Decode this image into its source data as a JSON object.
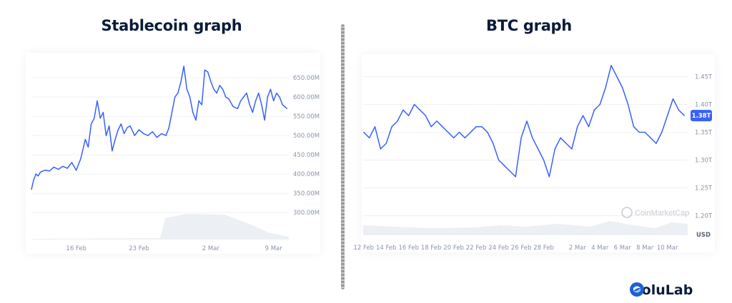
{
  "left": {
    "title": "Stablecoin graph"
  },
  "right": {
    "title": "BTC graph",
    "watermark": "CoinMarketCap",
    "currency_label": "USD"
  },
  "brand": {
    "name": "SoluLab"
  },
  "colors": {
    "line": "#3861fb",
    "title": "#0b1b3a",
    "volume": "#eceff3",
    "grid": "#eef0f3",
    "tick": "#8a94a6"
  },
  "chart_data": [
    {
      "type": "line",
      "title": "Stablecoin graph",
      "x_unit": "day (2024, approx.)",
      "xlabel": "",
      "ylabel": "",
      "x_ticks": [
        "16 Feb",
        "23 Feb",
        "2 Mar",
        "9 Mar"
      ],
      "y_ticks": [
        "300.00M",
        "350.00M",
        "400.00M",
        "450.00M",
        "500.00M",
        "550.00M",
        "600.00M",
        "650.00M"
      ],
      "ylim": [
        230,
        700
      ],
      "grid": true,
      "series": [
        {
          "values_unit": "millions",
          "points": [
            [
              "2024-02-11",
              360
            ],
            [
              "2024-02-11T06",
              385
            ],
            [
              "2024-02-11T12",
              400
            ],
            [
              "2024-02-11T18",
              395
            ],
            [
              "2024-02-12",
              405
            ],
            [
              "2024-02-12T12",
              410
            ],
            [
              "2024-02-13",
              408
            ],
            [
              "2024-02-13T12",
              418
            ],
            [
              "2024-02-14",
              412
            ],
            [
              "2024-02-14T12",
              420
            ],
            [
              "2024-02-15",
              415
            ],
            [
              "2024-02-15T12",
              430
            ],
            [
              "2024-02-16",
              410
            ],
            [
              "2024-02-16T12",
              440
            ],
            [
              "2024-02-17",
              490
            ],
            [
              "2024-02-17T08",
              470
            ],
            [
              "2024-02-17T16",
              530
            ],
            [
              "2024-02-18",
              545
            ],
            [
              "2024-02-18T08",
              590
            ],
            [
              "2024-02-18T16",
              545
            ],
            [
              "2024-02-19",
              560
            ],
            [
              "2024-02-19T08",
              500
            ],
            [
              "2024-02-19T16",
              525
            ],
            [
              "2024-02-20",
              460
            ],
            [
              "2024-02-20T08",
              490
            ],
            [
              "2024-02-20T16",
              515
            ],
            [
              "2024-02-21",
              530
            ],
            [
              "2024-02-21T08",
              505
            ],
            [
              "2024-02-21T16",
              520
            ],
            [
              "2024-02-22",
              525
            ],
            [
              "2024-02-22T12",
              500
            ],
            [
              "2024-02-23",
              515
            ],
            [
              "2024-02-23T12",
              505
            ],
            [
              "2024-02-24",
              500
            ],
            [
              "2024-02-24T12",
              510
            ],
            [
              "2024-02-25",
              495
            ],
            [
              "2024-02-25T12",
              505
            ],
            [
              "2024-02-26",
              500
            ],
            [
              "2024-02-26T08",
              520
            ],
            [
              "2024-02-26T16",
              560
            ],
            [
              "2024-02-27",
              600
            ],
            [
              "2024-02-27T08",
              610
            ],
            [
              "2024-02-27T16",
              640
            ],
            [
              "2024-02-28",
              680
            ],
            [
              "2024-02-28T08",
              620
            ],
            [
              "2024-02-28T16",
              600
            ],
            [
              "2024-02-29",
              560
            ],
            [
              "2024-02-29T08",
              540
            ],
            [
              "2024-02-29T16",
              590
            ],
            [
              "2024-03-01",
              580
            ],
            [
              "2024-03-01T08",
              670
            ],
            [
              "2024-03-01T16",
              665
            ],
            [
              "2024-03-02",
              640
            ],
            [
              "2024-03-02T08",
              620
            ],
            [
              "2024-03-02T16",
              610
            ],
            [
              "2024-03-03",
              630
            ],
            [
              "2024-03-03T08",
              620
            ],
            [
              "2024-03-03T16",
              600
            ],
            [
              "2024-03-04",
              595
            ],
            [
              "2024-03-04T12",
              575
            ],
            [
              "2024-03-05",
              570
            ],
            [
              "2024-03-05T08",
              590
            ],
            [
              "2024-03-05T16",
              600
            ],
            [
              "2024-03-06",
              610
            ],
            [
              "2024-03-06T08",
              580
            ],
            [
              "2024-03-06T16",
              560
            ],
            [
              "2024-03-07",
              590
            ],
            [
              "2024-03-07T08",
              610
            ],
            [
              "2024-03-07T16",
              580
            ],
            [
              "2024-03-08",
              540
            ],
            [
              "2024-03-08T08",
              600
            ],
            [
              "2024-03-08T16",
              620
            ],
            [
              "2024-03-09",
              590
            ],
            [
              "2024-03-09T08",
              610
            ],
            [
              "2024-03-09T16",
              600
            ],
            [
              "2024-03-10",
              580
            ],
            [
              "2024-03-10T12",
              570
            ]
          ]
        }
      ],
      "volume_shaded": true
    },
    {
      "type": "line",
      "title": "BTC graph",
      "x_unit": "day (2024, approx.)",
      "xlabel": "",
      "ylabel": "",
      "x_ticks": [
        "12 Feb",
        "14 Feb",
        "16 Feb",
        "18 Feb",
        "20 Feb",
        "22 Feb",
        "24 Feb",
        "26 Feb",
        "28 Feb",
        "2 Mar",
        "4 Mar",
        "6 Mar",
        "8 Mar",
        "10 Mar"
      ],
      "y_ticks": [
        "1.20T",
        "1.25T",
        "1.30T",
        "1.35T",
        "1.40T",
        "1.45T"
      ],
      "current_value_label": "1.38T",
      "ylim": [
        1.17,
        1.48
      ],
      "grid": true,
      "series": [
        {
          "values_unit": "trillions USD",
          "points": [
            [
              "2024-02-12",
              1.35
            ],
            [
              "2024-02-12T12",
              1.34
            ],
            [
              "2024-02-13",
              1.36
            ],
            [
              "2024-02-13T12",
              1.32
            ],
            [
              "2024-02-14",
              1.33
            ],
            [
              "2024-02-14T12",
              1.36
            ],
            [
              "2024-02-15",
              1.37
            ],
            [
              "2024-02-15T12",
              1.39
            ],
            [
              "2024-02-16",
              1.38
            ],
            [
              "2024-02-16T12",
              1.4
            ],
            [
              "2024-02-17",
              1.39
            ],
            [
              "2024-02-17T12",
              1.38
            ],
            [
              "2024-02-18",
              1.36
            ],
            [
              "2024-02-18T12",
              1.37
            ],
            [
              "2024-02-19",
              1.36
            ],
            [
              "2024-02-19T12",
              1.35
            ],
            [
              "2024-02-20",
              1.34
            ],
            [
              "2024-02-20T12",
              1.35
            ],
            [
              "2024-02-21",
              1.34
            ],
            [
              "2024-02-21T12",
              1.35
            ],
            [
              "2024-02-22",
              1.36
            ],
            [
              "2024-02-22T12",
              1.36
            ],
            [
              "2024-02-23",
              1.35
            ],
            [
              "2024-02-23T12",
              1.33
            ],
            [
              "2024-02-24",
              1.3
            ],
            [
              "2024-02-24T12",
              1.29
            ],
            [
              "2024-02-25",
              1.28
            ],
            [
              "2024-02-25T12",
              1.27
            ],
            [
              "2024-02-26",
              1.34
            ],
            [
              "2024-02-26T12",
              1.37
            ],
            [
              "2024-02-27",
              1.34
            ],
            [
              "2024-02-27T12",
              1.32
            ],
            [
              "2024-02-28",
              1.3
            ],
            [
              "2024-02-28T12",
              1.27
            ],
            [
              "2024-02-29",
              1.32
            ],
            [
              "2024-02-29T12",
              1.34
            ],
            [
              "2024-03-01",
              1.33
            ],
            [
              "2024-03-01T12",
              1.32
            ],
            [
              "2024-03-02",
              1.36
            ],
            [
              "2024-03-02T12",
              1.38
            ],
            [
              "2024-03-03",
              1.36
            ],
            [
              "2024-03-03T12",
              1.39
            ],
            [
              "2024-03-04",
              1.4
            ],
            [
              "2024-03-04T12",
              1.43
            ],
            [
              "2024-03-05",
              1.47
            ],
            [
              "2024-03-05T12",
              1.45
            ],
            [
              "2024-03-06",
              1.43
            ],
            [
              "2024-03-06T12",
              1.4
            ],
            [
              "2024-03-07",
              1.36
            ],
            [
              "2024-03-07T12",
              1.35
            ],
            [
              "2024-03-08",
              1.35
            ],
            [
              "2024-03-08T12",
              1.34
            ],
            [
              "2024-03-09",
              1.33
            ],
            [
              "2024-03-09T12",
              1.35
            ],
            [
              "2024-03-10",
              1.38
            ],
            [
              "2024-03-10T12",
              1.41
            ],
            [
              "2024-03-11",
              1.39
            ],
            [
              "2024-03-11T12",
              1.38
            ]
          ]
        }
      ],
      "volume_shaded": true
    }
  ]
}
